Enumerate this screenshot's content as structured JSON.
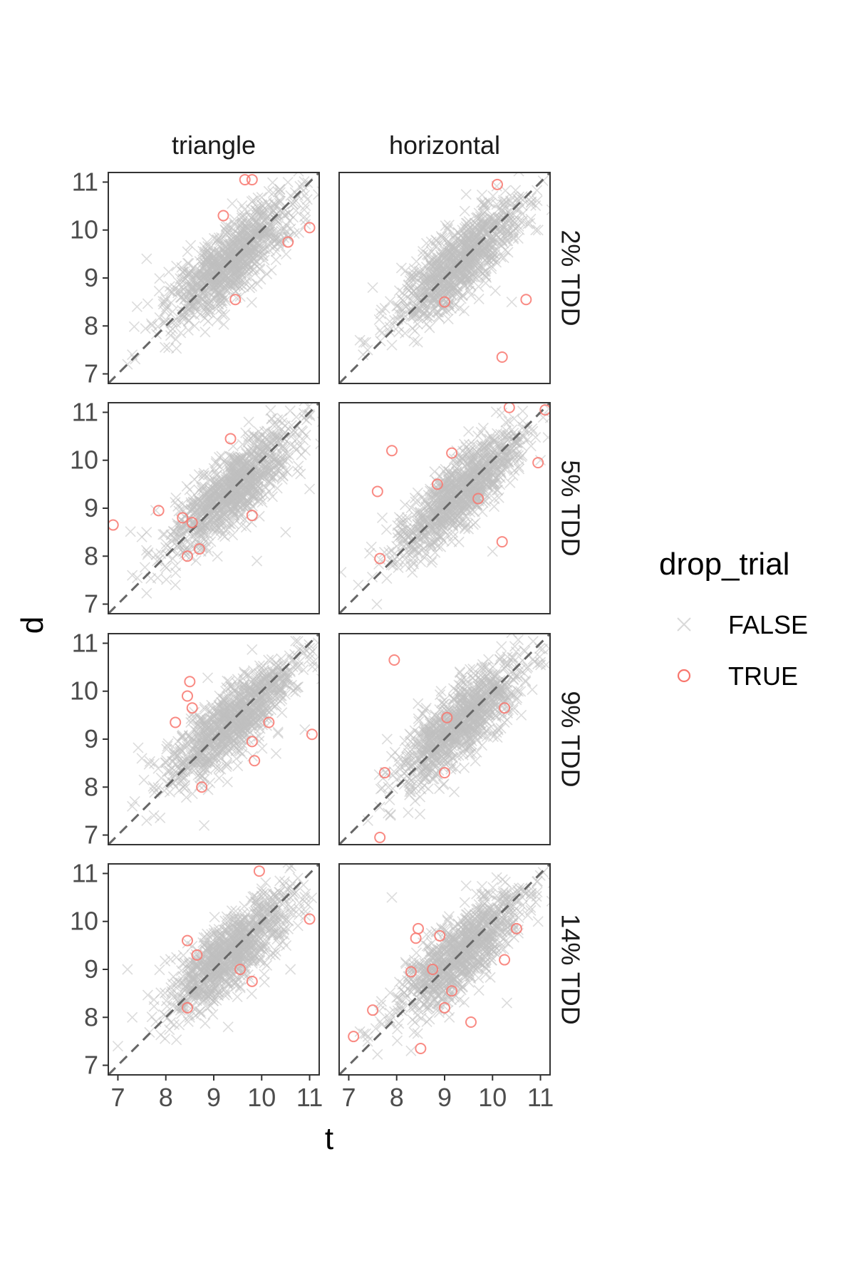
{
  "chart_data": {
    "type": "scatter",
    "facet_columns": [
      "triangle",
      "horizontal"
    ],
    "facet_rows": [
      "2% TDD",
      "5% TDD",
      "9% TDD",
      "14% TDD"
    ],
    "xlabel": "t",
    "ylabel": "d",
    "xlim": [
      6.8,
      11.2
    ],
    "ylim": [
      6.8,
      11.2
    ],
    "x_ticks": [
      7,
      8,
      9,
      10,
      11
    ],
    "y_ticks": [
      7,
      8,
      9,
      10,
      11
    ],
    "reference_line": {
      "slope": 1,
      "intercept": 0,
      "style": "dashed",
      "color": "#666666"
    },
    "grid": false,
    "legend": {
      "title": "drop_trial",
      "placement": "right",
      "entries": [
        {
          "label": "FALSE",
          "shape": "x",
          "color": "#bfbfbf"
        },
        {
          "label": "TRUE",
          "shape": "open-circle",
          "color": "#f8766d"
        }
      ]
    },
    "bulk_series": {
      "name": "FALSE",
      "note_shape": "dense elongated cloud along the diagonal",
      "panels": [
        {
          "row": "2% TDD",
          "col": "triangle",
          "outliers": [
            [
              7.6,
              9.4
            ],
            [
              7.4,
              8.4
            ],
            [
              7.2,
              7.2
            ],
            [
              7.3,
              7.4
            ],
            [
              8.1,
              7.8
            ],
            [
              8.6,
              8.0
            ]
          ]
        },
        {
          "row": "2% TDD",
          "col": "horizontal",
          "outliers": [
            [
              7.5,
              8.8
            ],
            [
              7.9,
              7.6
            ],
            [
              8.2,
              8.4
            ],
            [
              7.3,
              7.4
            ],
            [
              10.4,
              8.5
            ],
            [
              10.9,
              10.0
            ]
          ]
        },
        {
          "row": "5% TDD",
          "col": "triangle",
          "outliers": [
            [
              7.3,
              7.6
            ],
            [
              7.5,
              8.4
            ],
            [
              8.2,
              7.4
            ],
            [
              9.9,
              7.9
            ],
            [
              10.5,
              8.5
            ],
            [
              11.0,
              9.4
            ]
          ]
        },
        {
          "row": "5% TDD",
          "col": "horizontal",
          "outliers": [
            [
              7.2,
              7.4
            ],
            [
              7.7,
              8.8
            ],
            [
              8.1,
              8.4
            ],
            [
              9.5,
              10.6
            ],
            [
              10.0,
              8.1
            ],
            [
              11.0,
              10.0
            ]
          ]
        },
        {
          "row": "9% TDD",
          "col": "triangle",
          "outliers": [
            [
              7.3,
              7.6
            ],
            [
              7.5,
              8.6
            ],
            [
              7.6,
              7.3
            ],
            [
              8.8,
              7.2
            ],
            [
              10.3,
              8.7
            ],
            [
              10.9,
              9.2
            ]
          ]
        },
        {
          "row": "9% TDD",
          "col": "horizontal",
          "outliers": [
            [
              7.4,
              7.3
            ],
            [
              7.8,
              9.0
            ],
            [
              8.3,
              8.0
            ],
            [
              9.2,
              7.9
            ],
            [
              10.6,
              9.5
            ],
            [
              11.0,
              10.6
            ]
          ]
        },
        {
          "row": "14% TDD",
          "col": "triangle",
          "outliers": [
            [
              7.2,
              9.0
            ],
            [
              7.3,
              8.0
            ],
            [
              7.0,
              7.4
            ],
            [
              8.5,
              8.0
            ],
            [
              9.3,
              7.8
            ],
            [
              10.6,
              9.0
            ]
          ]
        },
        {
          "row": "14% TDD",
          "col": "horizontal",
          "outliers": [
            [
              7.9,
              10.5
            ],
            [
              7.4,
              7.6
            ],
            [
              8.3,
              7.3
            ],
            [
              9.1,
              8.0
            ],
            [
              10.3,
              8.3
            ],
            [
              10.9,
              10.4
            ]
          ]
        }
      ]
    },
    "series": [
      {
        "name": "TRUE",
        "panels": [
          {
            "row": "2% TDD",
            "col": "triangle",
            "points": [
              [
                9.65,
                11.05
              ],
              [
                9.8,
                11.05
              ],
              [
                9.2,
                10.3
              ],
              [
                11.0,
                10.05
              ],
              [
                10.55,
                9.75
              ],
              [
                9.45,
                8.55
              ]
            ]
          },
          {
            "row": "2% TDD",
            "col": "horizontal",
            "points": [
              [
                10.1,
                10.95
              ],
              [
                10.7,
                8.55
              ],
              [
                10.2,
                7.35
              ],
              [
                9.0,
                8.5
              ]
            ]
          },
          {
            "row": "5% TDD",
            "col": "triangle",
            "points": [
              [
                9.35,
                10.45
              ],
              [
                6.9,
                8.65
              ],
              [
                7.85,
                8.95
              ],
              [
                8.35,
                8.8
              ],
              [
                8.55,
                8.7
              ],
              [
                9.8,
                8.85
              ],
              [
                8.45,
                8.0
              ],
              [
                8.7,
                8.15
              ]
            ]
          },
          {
            "row": "5% TDD",
            "col": "horizontal",
            "points": [
              [
                10.35,
                11.1
              ],
              [
                11.1,
                11.05
              ],
              [
                7.9,
                10.2
              ],
              [
                9.15,
                10.15
              ],
              [
                10.95,
                9.95
              ],
              [
                7.6,
                9.35
              ],
              [
                8.85,
                9.5
              ],
              [
                9.7,
                9.2
              ],
              [
                10.2,
                8.3
              ],
              [
                7.65,
                7.95
              ]
            ]
          },
          {
            "row": "9% TDD",
            "col": "triangle",
            "points": [
              [
                8.5,
                10.2
              ],
              [
                8.45,
                9.9
              ],
              [
                8.55,
                9.65
              ],
              [
                8.2,
                9.35
              ],
              [
                10.15,
                9.35
              ],
              [
                11.05,
                9.1
              ],
              [
                9.8,
                8.95
              ],
              [
                9.85,
                8.55
              ],
              [
                8.75,
                8.0
              ]
            ]
          },
          {
            "row": "9% TDD",
            "col": "horizontal",
            "points": [
              [
                7.95,
                10.65
              ],
              [
                9.05,
                9.45
              ],
              [
                7.75,
                8.3
              ],
              [
                9.0,
                8.3
              ],
              [
                7.65,
                6.95
              ],
              [
                10.25,
                9.65
              ]
            ]
          },
          {
            "row": "14% TDD",
            "col": "triangle",
            "points": [
              [
                9.95,
                11.05
              ],
              [
                11.0,
                10.05
              ],
              [
                8.45,
                9.6
              ],
              [
                8.65,
                9.3
              ],
              [
                9.55,
                9.0
              ],
              [
                9.8,
                8.75
              ],
              [
                8.45,
                8.2
              ]
            ]
          },
          {
            "row": "14% TDD",
            "col": "horizontal",
            "points": [
              [
                8.45,
                9.85
              ],
              [
                8.4,
                9.65
              ],
              [
                8.9,
                9.7
              ],
              [
                10.5,
                9.85
              ],
              [
                10.25,
                9.2
              ],
              [
                8.3,
                8.95
              ],
              [
                8.75,
                9.0
              ],
              [
                9.15,
                8.55
              ],
              [
                9.0,
                8.2
              ],
              [
                7.5,
                8.15
              ],
              [
                9.55,
                7.9
              ],
              [
                7.1,
                7.6
              ],
              [
                8.5,
                7.35
              ]
            ]
          }
        ]
      }
    ]
  }
}
